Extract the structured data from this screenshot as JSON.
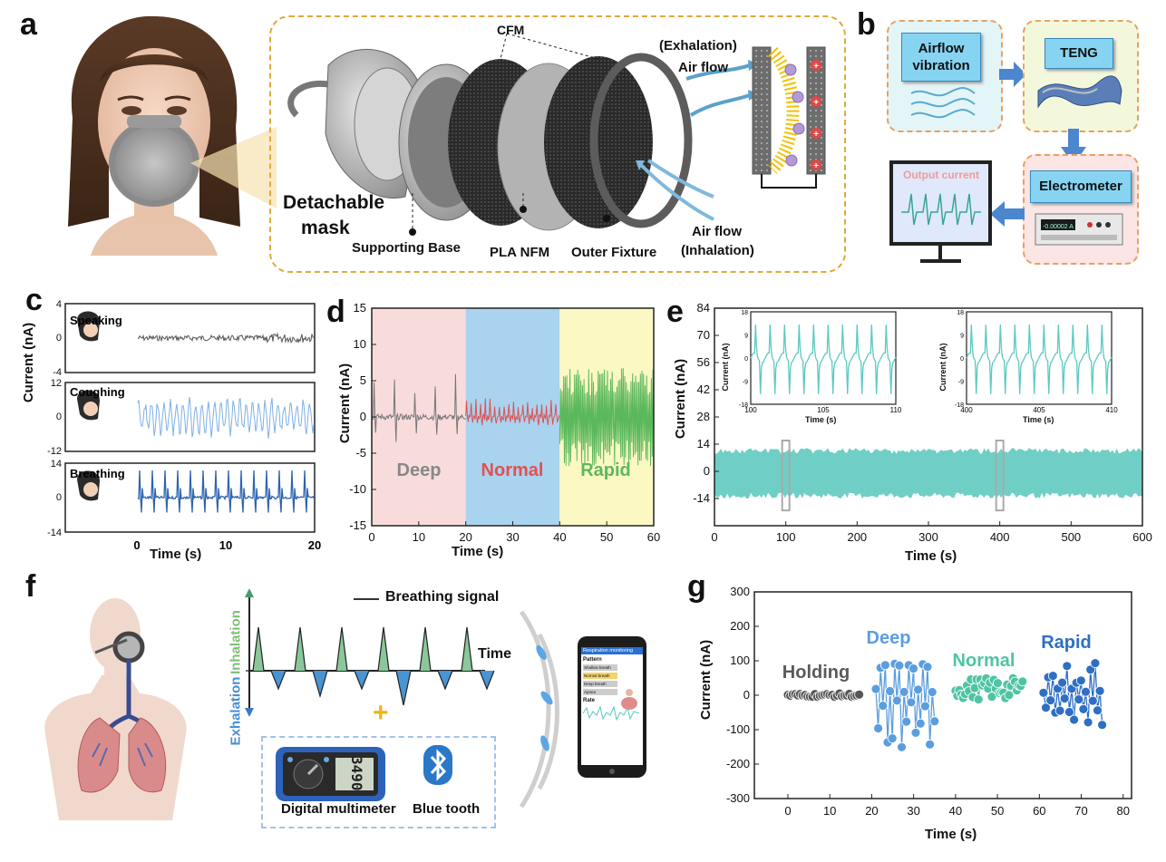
{
  "panels": {
    "a": {
      "label": "a",
      "cfm": "CFM",
      "exhalation": "(Exhalation)",
      "airflow_top": "Air flow",
      "detachable": "Detachable",
      "mask": "mask",
      "supporting_base": "Supporting Base",
      "pla_nfm": "PLA NFM",
      "outer_fixture": "Outer Fixture",
      "airflow_bottom": "Air flow",
      "inhalation": "(Inhalation)"
    },
    "b": {
      "label": "b",
      "airflow_vibration_1": "Airflow",
      "airflow_vibration_2": "vibration",
      "teng": "TENG",
      "electrometer": "Electrometer",
      "output_current": "Output current"
    },
    "c": {
      "label": "c",
      "ylabel": "Current (nA)",
      "xlabel": "Time (s)",
      "rows": [
        {
          "name": "Speaking",
          "ticks": [
            "4",
            "0",
            "-4"
          ]
        },
        {
          "name": "Coughing",
          "ticks": [
            "12",
            "0",
            "-12"
          ]
        },
        {
          "name": "Breathing",
          "ticks": [
            "14",
            "0",
            "-14"
          ]
        }
      ],
      "xticks": [
        "0",
        "10",
        "20"
      ]
    },
    "d": {
      "label": "d",
      "ylabel": "Current (nA)",
      "xlabel": "Time (s)",
      "zones": [
        "Deep",
        "Normal",
        "Rapid"
      ]
    },
    "e": {
      "label": "e",
      "ylabel": "Current (nA)",
      "xlabel": "Time (s)",
      "inset_ylabel": "Current (nA)",
      "inset_xlabel": "Time (s)"
    },
    "f": {
      "label": "f",
      "breathing_signal": "Breathing signal",
      "time": "Time",
      "inhalation": "Inhalation",
      "exhalation": "Exhalation",
      "plus": "+",
      "multimeter": "Digital multimeter",
      "bluetooth": "Blue tooth",
      "meter_reading": "3490",
      "phone": {
        "title": "Respiration monitoring",
        "pattern": "Pattern",
        "items": [
          "Shallow breath",
          "Normal breath",
          "Deep breath",
          "Apnea"
        ],
        "rate": "Rate"
      }
    },
    "g": {
      "label": "g",
      "ylabel": "Current (nA)",
      "xlabel": "Time (s)",
      "groups": [
        "Holding",
        "Deep",
        "Normal",
        "Rapid"
      ]
    }
  },
  "chart_data": [
    {
      "type": "line",
      "id": "d",
      "xlabel": "Time (s)",
      "ylabel": "Current (nA)",
      "xlim": [
        0,
        60
      ],
      "ylim": [
        -15,
        15
      ],
      "xticks": [
        0,
        10,
        20,
        30,
        40,
        50,
        60
      ],
      "yticks": [
        -15,
        -10,
        -5,
        0,
        5,
        10,
        15
      ],
      "regions": [
        {
          "name": "Deep",
          "x": [
            0,
            20
          ],
          "color": "#f8dcdc",
          "line": "#777777"
        },
        {
          "name": "Normal",
          "x": [
            20,
            40
          ],
          "color": "#a9d3ef",
          "line": "#e05050"
        },
        {
          "name": "Rapid",
          "x": [
            40,
            60
          ],
          "color": "#fbf8c4",
          "line": "#5cb85c"
        }
      ]
    },
    {
      "type": "line",
      "id": "e",
      "xlabel": "Time (s)",
      "ylabel": "Current (nA)",
      "xlim": [
        0,
        600
      ],
      "ylim": [
        -28,
        84
      ],
      "xticks": [
        0,
        100,
        200,
        300,
        400,
        500,
        600
      ],
      "yticks": [
        -14,
        0,
        14,
        28,
        42,
        56,
        70,
        84
      ],
      "band": [
        -14,
        12
      ],
      "insets": [
        {
          "xlim": [
            100,
            110
          ],
          "xticks": [
            100,
            105,
            110
          ],
          "yticks": [
            -18,
            -9,
            0,
            9,
            18
          ]
        },
        {
          "xlim": [
            400,
            410
          ],
          "xticks": [
            400,
            405,
            410
          ],
          "yticks": [
            -18,
            -9,
            0,
            9,
            18
          ]
        }
      ]
    },
    {
      "type": "scatter",
      "id": "g",
      "xlabel": "Time (s)",
      "ylabel": "Current (nA)",
      "xlim": [
        -8,
        82
      ],
      "ylim": [
        -300,
        300
      ],
      "xticks": [
        0,
        10,
        20,
        30,
        40,
        50,
        60,
        70,
        80
      ],
      "yticks": [
        -300,
        -200,
        -100,
        0,
        100,
        200,
        300
      ],
      "series": [
        {
          "name": "Holding",
          "x_range": [
            0,
            17
          ],
          "amp": [
            -8,
            8
          ],
          "color": "#555555"
        },
        {
          "name": "Deep",
          "x_range": [
            21,
            35
          ],
          "amp": [
            -165,
            95
          ],
          "color": "#5b9ede"
        },
        {
          "name": "Normal",
          "x_range": [
            40,
            56
          ],
          "amp": [
            -40,
            50
          ],
          "color": "#4ec4a4"
        },
        {
          "name": "Rapid",
          "x_range": [
            61,
            75
          ],
          "amp": [
            -90,
            100
          ],
          "color": "#2e6fc4"
        }
      ]
    }
  ]
}
